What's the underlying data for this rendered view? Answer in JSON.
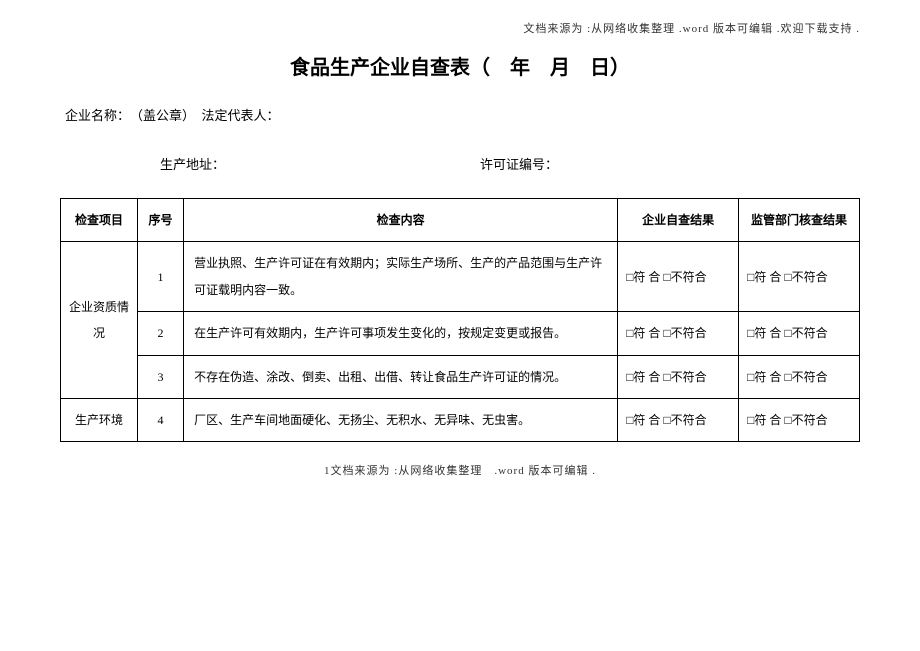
{
  "header_note": "文档来源为 :从网络收集整理 .word 版本可编辑 .欢迎下载支持 .",
  "title": "食品生产企业自查表（　年　月　日）",
  "company_label": "企业名称：　（盖公章）　法定代表人：",
  "addr_label": "生产地址：",
  "permit_label": "许可证编号：",
  "headers": {
    "category": "检查项目",
    "seq": "序号",
    "content": "检查内容",
    "result1": "企业自查结果",
    "result2": "监管部门核查结果"
  },
  "categories": {
    "cat1": "企业资质情况",
    "cat2": "生产环境"
  },
  "rows": [
    {
      "seq": "1",
      "content": "营业执照、生产许可证在有效期内；实际生产场所、生产的产品范围与生产许可证载明内容一致。"
    },
    {
      "seq": "2",
      "content": "在生产许可有效期内，生产许可事项发生变化的，按规定变更或报告。"
    },
    {
      "seq": "3",
      "content": "不存在伪造、涂改、倒卖、出租、出借、转让食品生产许可证的情况。"
    },
    {
      "seq": "4",
      "content": "厂区、生产车间地面硬化、无扬尘、无积水、无异味、无虫害。"
    }
  ],
  "result_text": "□符 合 □不符合",
  "footer_note": "1文档来源为 :从网络收集整理　.word 版本可编辑 ."
}
